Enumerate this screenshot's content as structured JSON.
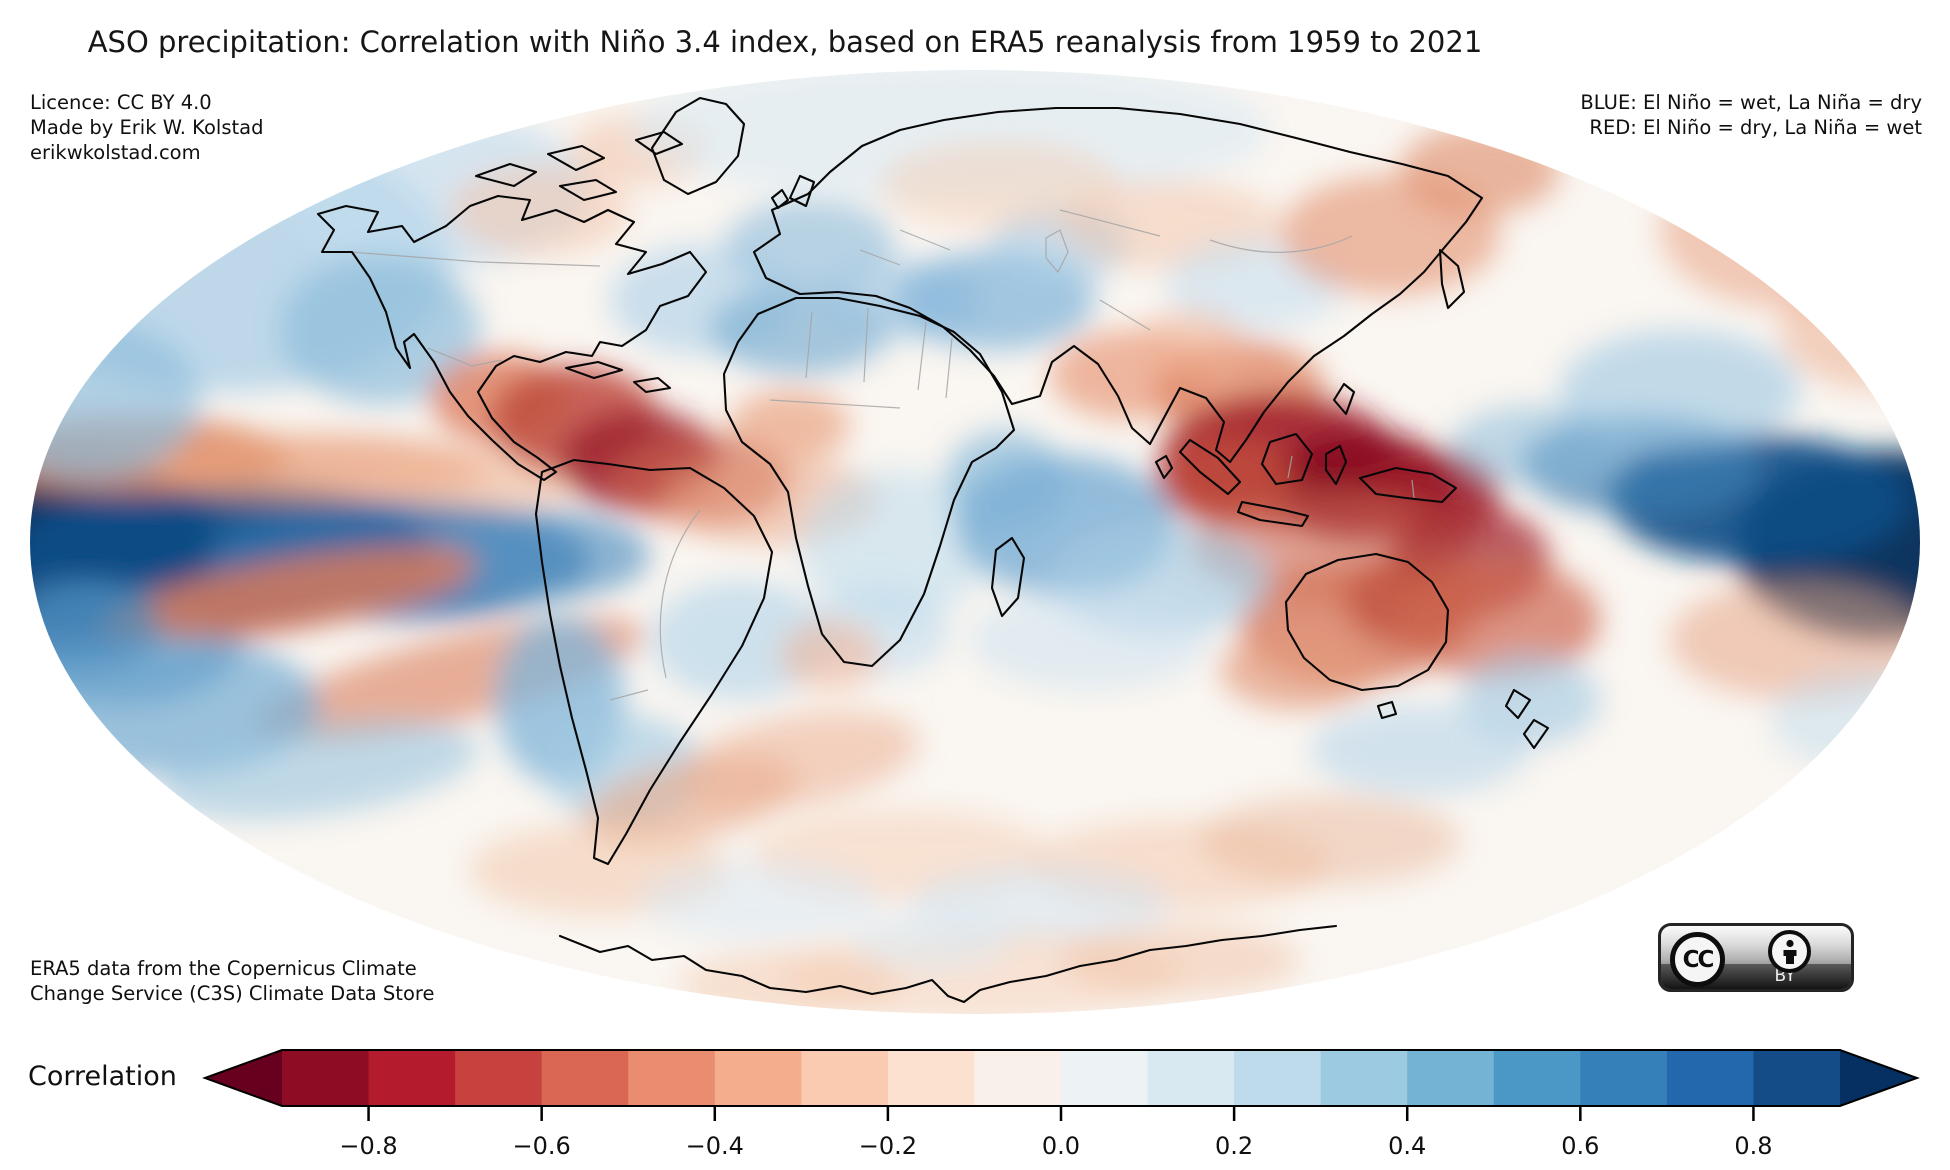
{
  "title": "ASO precipitation: Correlation with Niño 3.4 index, based on ERA5 reanalysis from 1959 to 2021",
  "annotations": {
    "top_left": {
      "line1": "Licence: CC BY 4.0",
      "line2": "Made by Erik W. Kolstad",
      "line3": "erikwkolstad.com"
    },
    "top_right": {
      "line1": "BLUE: El Niño = wet, La Niña = dry",
      "line2": "RED: El Niño = dry, La Niña = wet"
    },
    "bottom_left": {
      "line1": "ERA5 data from the Copernicus Climate",
      "line2": "Change Service (C3S) Climate Data Store"
    }
  },
  "license_badge": {
    "cc_text": "CC",
    "text": "BY"
  },
  "colorbar": {
    "label": "Correlation",
    "ticks": [
      "−0.8",
      "−0.6",
      "−0.4",
      "−0.2",
      "0.0",
      "0.2",
      "0.4",
      "0.6",
      "0.8"
    ],
    "tick_values": [
      -0.8,
      -0.6,
      -0.4,
      -0.2,
      0.0,
      0.2,
      0.4,
      0.6,
      0.8
    ],
    "range": [
      -0.9,
      0.9
    ],
    "extend": "both",
    "segment_colors": [
      "#8e0d25",
      "#b41c2d",
      "#c7423f",
      "#d96753",
      "#e98c6f",
      "#f5ae8d",
      "#facab1",
      "#fce1d1",
      "#f9f0ea",
      "#edf2f5",
      "#d9e9f1",
      "#bddbea",
      "#9ccae1",
      "#75b3d4",
      "#4b98c6",
      "#3580b9",
      "#2368ad",
      "#144c88"
    ],
    "arrow_left_color": "#67001f",
    "arrow_right_color": "#053061"
  },
  "chart_data": {
    "type": "heatmap",
    "projection": "mollweide",
    "variable": "Correlation of August–October precipitation with Niño 3.4 index (ERA5 reanalysis, 1959–2021)",
    "colormap": "RdBu",
    "levels": [
      -0.9,
      -0.8,
      -0.7,
      -0.6,
      -0.5,
      -0.4,
      -0.3,
      -0.2,
      -0.1,
      0.0,
      0.1,
      0.2,
      0.3,
      0.4,
      0.5,
      0.6,
      0.7,
      0.8,
      0.9
    ],
    "legend_meaning": {
      "blue": "El Niño = wet, La Niña = dry",
      "red": "El Niño = dry, La Niña = wet"
    },
    "key_features": [
      {
        "region": "central-equatorial-pacific (both map edges)",
        "correlation": "strong positive > 0.8",
        "color": "#09355f"
      },
      {
        "region": "maritime-continent-indonesia-new-guinea",
        "correlation": "strong negative < -0.8",
        "color": "#8a1020"
      },
      {
        "region": "caribbean-and-northern-south-america",
        "correlation": "negative ~ -0.6",
        "color": "#a12833"
      },
      {
        "region": "australia-and-coral-sea",
        "correlation": "negative ~ -0.4",
        "color": "#c05340"
      },
      {
        "region": "western-indian-ocean",
        "correlation": "positive ~ 0.4",
        "color": "#79aed4"
      },
      {
        "region": "southwest-north-america",
        "correlation": "positive ~ 0.3",
        "color": "#8cbcdc"
      },
      {
        "region": "middle-east-and-north-africa",
        "correlation": "positive ~ 0.3",
        "color": "#84b6d9"
      },
      {
        "region": "itcz-band-north-of-equator-pacific",
        "correlation": "negative ~ -0.4",
        "color": "#dd8a64"
      },
      {
        "region": "south-pacific-convergence-zone-streaks",
        "correlation": "negative ~ -0.4",
        "color": "#d97a5c"
      },
      {
        "region": "northeast-asia-far-east",
        "correlation": "negative ~ -0.3",
        "color": "#e59878"
      }
    ]
  }
}
